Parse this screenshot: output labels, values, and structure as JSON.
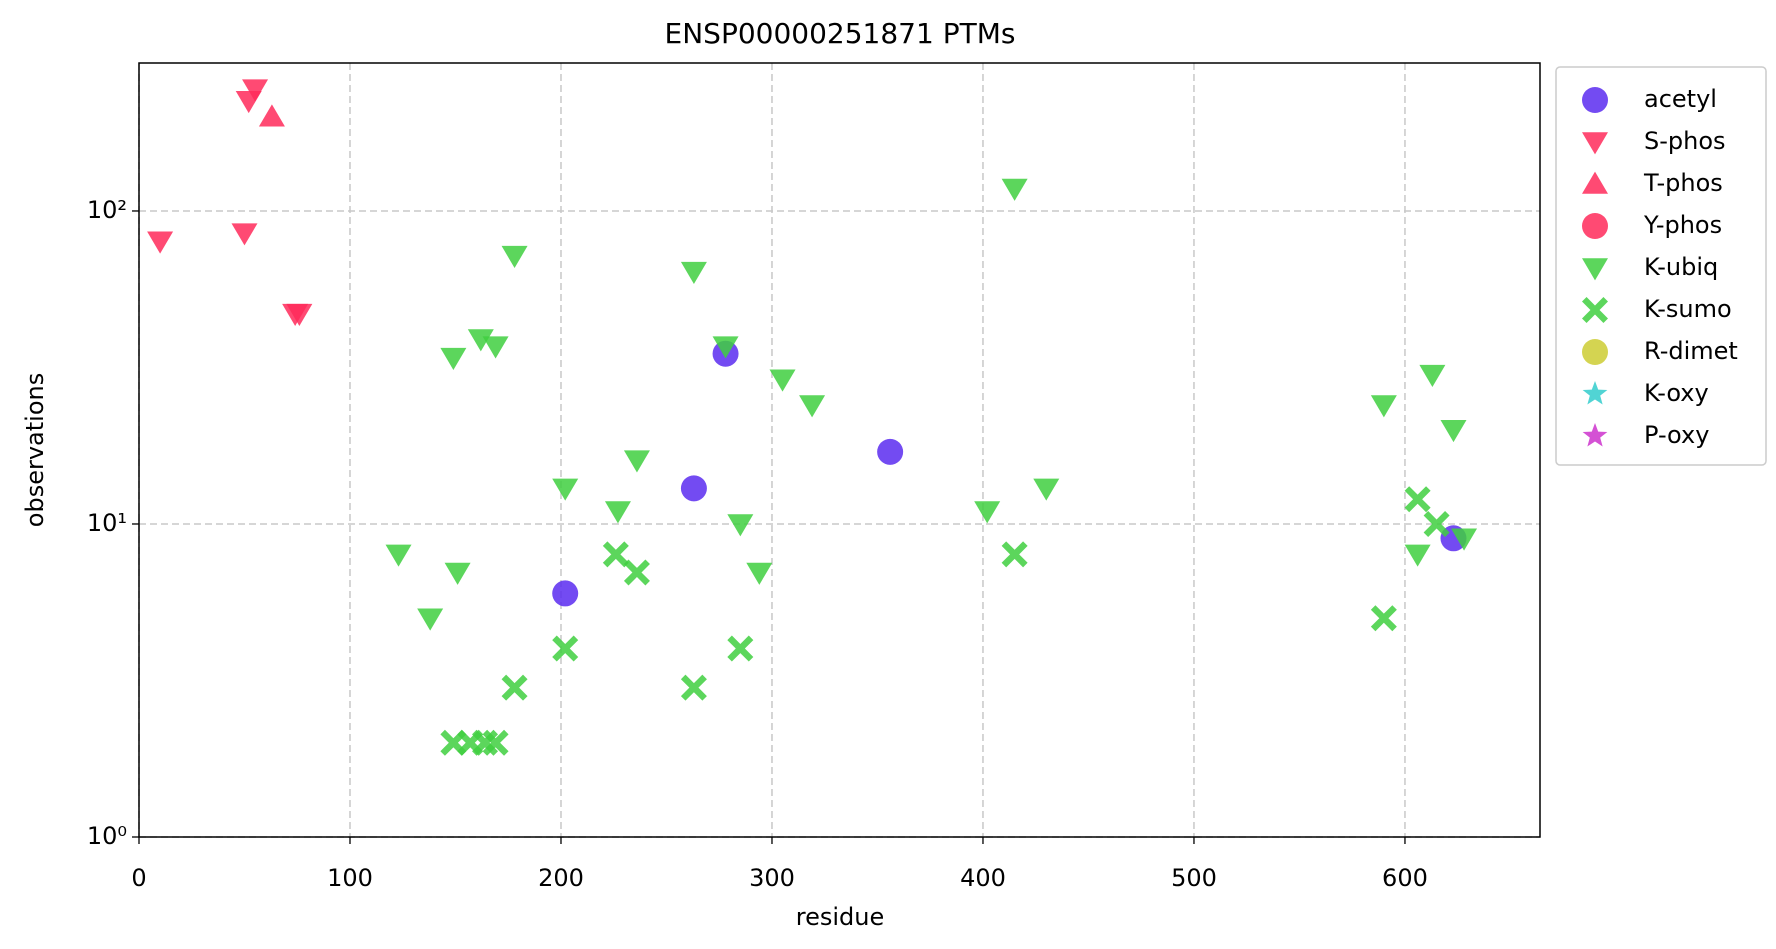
{
  "chart_data": {
    "type": "scatter",
    "title": "ENSP00000251871 PTMs",
    "x_label": "residue",
    "y_label": "observations",
    "xlim": [
      0,
      664
    ],
    "xticks": [
      0,
      100,
      200,
      300,
      400,
      500,
      600
    ],
    "ylim": [
      1,
      297
    ],
    "y_scale": "log",
    "yticks": [
      {
        "value": 1,
        "label": "10⁰"
      },
      {
        "value": 10,
        "label": "10¹"
      },
      {
        "value": 100,
        "label": "10²"
      }
    ],
    "grid": true,
    "legend": "outside-right",
    "series": [
      {
        "name": "acetyl",
        "color": "#5b2cf0",
        "marker": "circle",
        "x": [
          202,
          263,
          278,
          356,
          623
        ],
        "values": [
          6,
          13,
          35,
          17,
          9
        ]
      },
      {
        "name": "S-phos",
        "color": "#ff2a5a",
        "marker": "triangle-down",
        "x": [
          10,
          50,
          52,
          55,
          74,
          76
        ],
        "values": [
          80,
          85,
          225,
          245,
          47,
          47
        ]
      },
      {
        "name": "T-phos",
        "color": "#ff2a5a",
        "marker": "triangle-up",
        "x": [
          63
        ],
        "values": [
          200
        ]
      },
      {
        "name": "Y-phos",
        "color": "#ff2a5a",
        "marker": "circle",
        "x": [],
        "values": []
      },
      {
        "name": "K-ubiq",
        "color": "#3fcf3f",
        "marker": "triangle-down",
        "x": [
          123,
          138,
          149,
          151,
          162,
          169,
          178,
          202,
          227,
          236,
          263,
          278,
          285,
          294,
          305,
          319,
          402,
          415,
          430,
          590,
          606,
          613,
          623,
          628
        ],
        "values": [
          8,
          5,
          34,
          7,
          39,
          37,
          72,
          13,
          11,
          16,
          64,
          37,
          10,
          7,
          29,
          24,
          11,
          118,
          13,
          24,
          8,
          30,
          20,
          9
        ]
      },
      {
        "name": "K-sumo",
        "color": "#3fcf3f",
        "marker": "x",
        "x": [
          149,
          157,
          164,
          169,
          178,
          202,
          226,
          236,
          263,
          285,
          415,
          590,
          606,
          615
        ],
        "values": [
          2,
          2,
          2,
          2,
          3,
          4,
          8,
          7,
          3,
          4,
          8,
          5,
          12,
          10
        ]
      },
      {
        "name": "R-dimet",
        "color": "#cccc33",
        "marker": "circle",
        "x": [],
        "values": []
      },
      {
        "name": "K-oxy",
        "color": "#33cccc",
        "marker": "star",
        "x": [],
        "values": []
      },
      {
        "name": "P-oxy",
        "color": "#cc33cc",
        "marker": "star",
        "x": [],
        "values": []
      }
    ]
  }
}
